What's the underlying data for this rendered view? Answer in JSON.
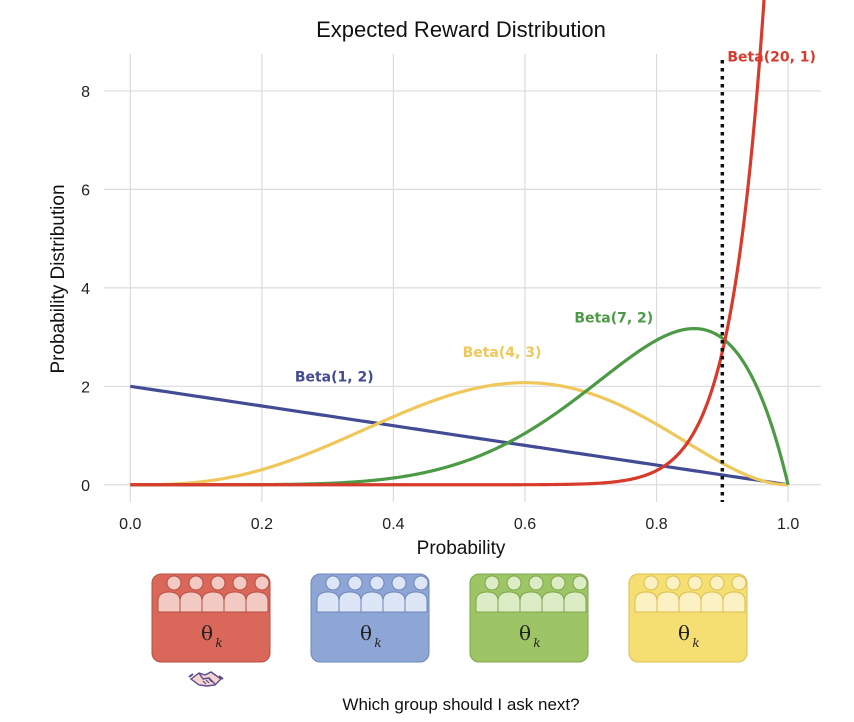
{
  "chart_data": {
    "type": "line",
    "title": "Expected Reward Distribution",
    "xlabel": "Probability",
    "ylabel": "Probability Distribution",
    "xlim": [
      -0.04,
      1.05
    ],
    "ylim": [
      -0.35,
      8.75
    ],
    "xticks": [
      "0.0",
      "0.2",
      "0.4",
      "0.6",
      "0.8",
      "1.0"
    ],
    "xtick_values": [
      0.0,
      0.2,
      0.4,
      0.6,
      0.8,
      1.0
    ],
    "yticks": [
      "0",
      "2",
      "4",
      "6",
      "8"
    ],
    "ytick_values": [
      0,
      2,
      4,
      6,
      8
    ],
    "grid": true,
    "series": [
      {
        "name": "Beta(1, 2)",
        "alpha": 1,
        "beta": 2,
        "color": "#434b95",
        "label_at": [
          0.31,
          2.1
        ]
      },
      {
        "name": "Beta(4, 3)",
        "alpha": 4,
        "beta": 3,
        "color": "#efc75a",
        "label_at": [
          0.565,
          2.6
        ]
      },
      {
        "name": "Beta(7, 2)",
        "alpha": 7,
        "beta": 2,
        "color": "#4c9a45",
        "label_at": [
          0.735,
          3.3
        ]
      },
      {
        "name": "Beta(20, 1)",
        "alpha": 20,
        "beta": 1,
        "color": "#d83a2c",
        "label_at": [
          0.975,
          8.6
        ]
      }
    ],
    "reference_line": {
      "x": 0.9,
      "style": "dotted",
      "color": "#111111"
    }
  },
  "groups": [
    {
      "theta": "θ",
      "subscript": "k",
      "color": "#d9685b",
      "person_fill": "#f2c9c3",
      "stroke": "#b84d42"
    },
    {
      "theta": "θ",
      "subscript": "k",
      "color": "#8ea6d6",
      "person_fill": "#dde6f6",
      "stroke": "#6f86b8"
    },
    {
      "theta": "θ",
      "subscript": "k",
      "color": "#9dc566",
      "person_fill": "#dcecc4",
      "stroke": "#7ea54b"
    },
    {
      "theta": "θ",
      "subscript": "k",
      "color": "#f5df72",
      "person_fill": "#fbf1c2",
      "stroke": "#d9bf4d"
    }
  ],
  "handshake_icon": "handshake-icon",
  "caption": "Which group should I ask next?"
}
